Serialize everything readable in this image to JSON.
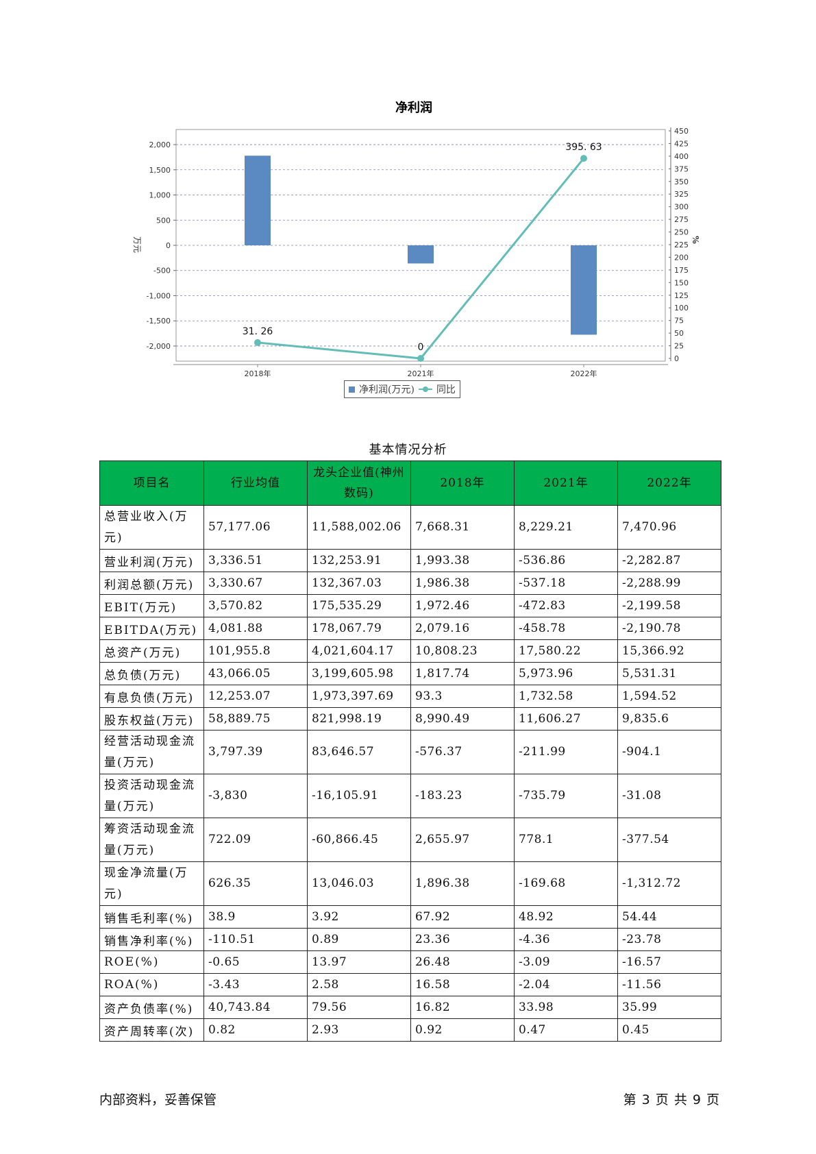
{
  "chart_data": {
    "type": "bar+line",
    "title": "净利润",
    "categories": [
      "2018年",
      "2021年",
      "2022年"
    ],
    "series": [
      {
        "name": "净利润(万元)",
        "type": "bar",
        "axis": "left",
        "color": "#5b8ac2",
        "values": [
          1780,
          -360,
          -1775
        ]
      },
      {
        "name": "同比",
        "type": "line",
        "axis": "right",
        "color": "#62bdb6",
        "values": [
          31.26,
          0,
          395.63
        ],
        "labels": [
          "31. 26",
          "0",
          "395. 63"
        ]
      }
    ],
    "ylabel_left": "万元",
    "ylabel_right": "%",
    "ylim_left": [
      -2300,
      2300
    ],
    "ylim_right": [
      0,
      450
    ],
    "yticks_left": [
      2000,
      1500,
      1000,
      500,
      0,
      -500,
      -1000,
      -1500,
      -2000
    ],
    "yticks_left_labels": [
      "2,000",
      "1,500",
      "1,000",
      "500",
      "0",
      "-500",
      "-1,000",
      "-1,500",
      "-2,000"
    ],
    "yticks_right": [
      450,
      425,
      400,
      375,
      350,
      325,
      300,
      275,
      250,
      225,
      200,
      175,
      150,
      125,
      100,
      75,
      50,
      25,
      0
    ],
    "grid": true,
    "legend_position": "bottom-center"
  },
  "table": {
    "caption": "基本情况分析",
    "headers": [
      "项目名",
      "行业均值",
      "龙头企业值(神州数码)",
      "2018年",
      "2021年",
      "2022年"
    ],
    "rows": [
      {
        "name": "总营业收入(万元)",
        "tall": true,
        "values": [
          "57,177.06",
          "11,588,002.06",
          "7,668.31",
          "8,229.21",
          "7,470.96"
        ]
      },
      {
        "name": "营业利润(万元)",
        "tall": false,
        "values": [
          "3,336.51",
          "132,253.91",
          "1,993.38",
          "-536.86",
          "-2,282.87"
        ]
      },
      {
        "name": "利润总额(万元)",
        "tall": false,
        "values": [
          "3,330.67",
          "132,367.03",
          "1,986.38",
          "-537.18",
          "-2,288.99"
        ]
      },
      {
        "name": "EBIT(万元)",
        "tall": false,
        "values": [
          "3,570.82",
          "175,535.29",
          "1,972.46",
          "-472.83",
          "-2,199.58"
        ]
      },
      {
        "name": "EBITDA(万元)",
        "tall": false,
        "values": [
          "4,081.88",
          "178,067.79",
          "2,079.16",
          "-458.78",
          "-2,190.78"
        ]
      },
      {
        "name": "总资产(万元)",
        "tall": false,
        "values": [
          "101,955.8",
          "4,021,604.17",
          "10,808.23",
          "17,580.22",
          "15,366.92"
        ]
      },
      {
        "name": "总负债(万元)",
        "tall": false,
        "values": [
          "43,066.05",
          "3,199,605.98",
          "1,817.74",
          "5,973.96",
          "5,531.31"
        ]
      },
      {
        "name": "有息负债(万元)",
        "tall": false,
        "values": [
          "12,253.07",
          "1,973,397.69",
          "93.3",
          "1,732.58",
          "1,594.52"
        ]
      },
      {
        "name": "股东权益(万元)",
        "tall": false,
        "values": [
          "58,889.75",
          "821,998.19",
          "8,990.49",
          "11,606.27",
          "9,835.6"
        ]
      },
      {
        "name": "经营活动现金流量(万元)",
        "tall": true,
        "values": [
          "3,797.39",
          "83,646.57",
          "-576.37",
          "-211.99",
          "-904.1"
        ]
      },
      {
        "name": "投资活动现金流量(万元)",
        "tall": true,
        "values": [
          "-3,830",
          "-16,105.91",
          "-183.23",
          "-735.79",
          "-31.08"
        ]
      },
      {
        "name": "筹资活动现金流量(万元)",
        "tall": true,
        "values": [
          "722.09",
          "-60,866.45",
          "2,655.97",
          "778.1",
          "-377.54"
        ]
      },
      {
        "name": "现金净流量(万元)",
        "tall": true,
        "values": [
          "626.35",
          "13,046.03",
          "1,896.38",
          "-169.68",
          "-1,312.72"
        ]
      },
      {
        "name": "销售毛利率(%)",
        "tall": false,
        "values": [
          "38.9",
          "3.92",
          "67.92",
          "48.92",
          "54.44"
        ]
      },
      {
        "name": "销售净利率(%)",
        "tall": false,
        "values": [
          "-110.51",
          "0.89",
          "23.36",
          "-4.36",
          "-23.78"
        ]
      },
      {
        "name": "ROE(%)",
        "tall": false,
        "values": [
          "-0.65",
          "13.97",
          "26.48",
          "-3.09",
          "-16.57"
        ]
      },
      {
        "name": "ROA(%)",
        "tall": false,
        "values": [
          "-3.43",
          "2.58",
          "16.58",
          "-2.04",
          "-11.56"
        ]
      },
      {
        "name": "资产负债率(%)",
        "tall": false,
        "values": [
          "40,743.84",
          "79.56",
          "16.82",
          "33.98",
          "35.99"
        ]
      },
      {
        "name": "资产周转率(次)",
        "tall": false,
        "values": [
          "0.82",
          "2.93",
          "0.92",
          "0.47",
          "0.45"
        ]
      }
    ]
  },
  "footer": {
    "left": "内部资料，妥善保管",
    "right": "第 3 页  共 9 页"
  }
}
